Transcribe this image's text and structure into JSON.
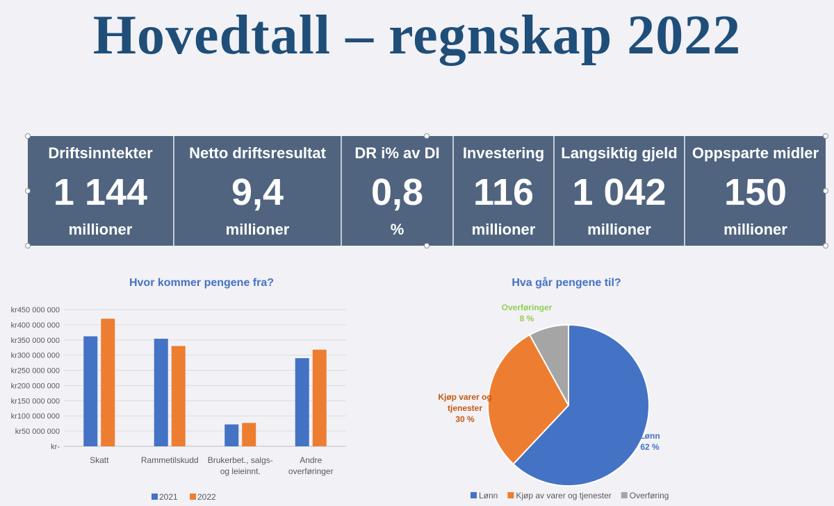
{
  "title": "Hovedtall – regnskap 2022",
  "kpis": [
    {
      "heading": "Driftsinntekter",
      "value": "1 144",
      "unit": "millioner"
    },
    {
      "heading": "Netto driftsresultat",
      "value": "9,4",
      "unit": "millioner"
    },
    {
      "heading": "DR i% av DI",
      "value": "0,8",
      "unit": "%"
    },
    {
      "heading": "Investering",
      "value": "116",
      "unit": "millioner"
    },
    {
      "heading": "Langsiktig gjeld",
      "value": "1 042",
      "unit": "millioner"
    },
    {
      "heading": "Oppsparte midler",
      "value": "150",
      "unit": "millioner"
    }
  ],
  "colors": {
    "series_2021": "#4472c4",
    "series_2022": "#ed7d31",
    "other": "#a5a5a5",
    "title": "#1f4e79",
    "kpi_bg": "#50647f"
  },
  "chart_data": [
    {
      "type": "bar",
      "title": "Hvor kommer pengene fra?",
      "categories": [
        [
          "Skatt"
        ],
        [
          "Rammetilskudd"
        ],
        [
          "Brukerbet., salgs-",
          "og leieinnt."
        ],
        [
          "Andre",
          "overføringer"
        ]
      ],
      "series": [
        {
          "name": "2021",
          "values": [
            362000000,
            354000000,
            72000000,
            290000000
          ]
        },
        {
          "name": "2022",
          "values": [
            420000000,
            330000000,
            77000000,
            318000000
          ]
        }
      ],
      "ylim": [
        0,
        450000000
      ],
      "ytick_labels": [
        "kr-",
        "kr50 000 000",
        "kr100 000 000",
        "kr150 000 000",
        "kr200 000 000",
        "kr250 000 000",
        "kr300 000 000",
        "kr350 000 000",
        "kr400 000 000",
        "kr450 000 000"
      ],
      "grid": true,
      "legend": "bottom"
    },
    {
      "type": "pie",
      "title": "Hva går pengene til?",
      "slices": [
        {
          "legend": "Lønn",
          "label": [
            "Lønn"
          ],
          "percent_label": "62 %",
          "value": 62,
          "color": "#4472c4"
        },
        {
          "legend": "Kjøp av varer og tjenester",
          "label": [
            "Kjøp varer og",
            "tjenester"
          ],
          "percent_label": "30 %",
          "value": 30,
          "color": "#ed7d31"
        },
        {
          "legend": "Overføring",
          "label": [
            "Overføringer"
          ],
          "percent_label": "8 %",
          "value": 8,
          "color": "#a5a5a5"
        }
      ],
      "legend": "bottom"
    }
  ]
}
